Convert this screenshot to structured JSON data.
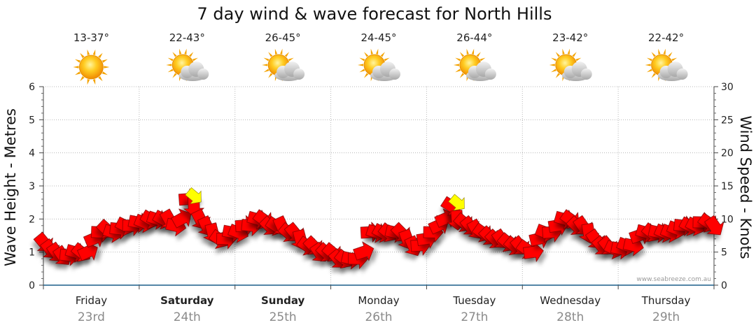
{
  "chart_data": {
    "type": "line",
    "title": "7 day wind & wave forecast for North Hills",
    "ylabel_left": "Wave Height - Metres",
    "ylabel_right": "Wind Speed - Knots",
    "ylim_left": [
      0,
      6
    ],
    "ylim_right": [
      0,
      30
    ],
    "left_ticks": [
      "0",
      "1",
      "2",
      "3",
      "4",
      "5",
      "6"
    ],
    "right_ticks": [
      "0",
      "5",
      "10",
      "15",
      "20",
      "25",
      "30"
    ],
    "credit": "www.seabreeze.com.au",
    "days": [
      {
        "name": "Friday",
        "date": "23rd",
        "temp": "13-37°",
        "weather": "sunny",
        "bold": false
      },
      {
        "name": "Saturday",
        "date": "24th",
        "temp": "22-43°",
        "weather": "partly-cloudy",
        "bold": true
      },
      {
        "name": "Sunday",
        "date": "25th",
        "temp": "26-45°",
        "weather": "partly-cloudy",
        "bold": true
      },
      {
        "name": "Monday",
        "date": "26th",
        "temp": "24-45°",
        "weather": "partly-cloudy",
        "bold": false
      },
      {
        "name": "Tuesday",
        "date": "27th",
        "temp": "26-44°",
        "weather": "partly-cloudy",
        "bold": false
      },
      {
        "name": "Wednesday",
        "date": "28th",
        "temp": "23-42°",
        "weather": "partly-cloudy",
        "bold": false
      },
      {
        "name": "Thursday",
        "date": "29th",
        "temp": "22-42°",
        "weather": "partly-cloudy",
        "bold": false
      }
    ],
    "series": [
      {
        "name": "Wind Speed (knots)",
        "axis": "right",
        "color": "#ff0000",
        "gust_color": "#ffff00",
        "values": [
          6.5,
          5.5,
          5,
          4.5,
          4.5,
          5,
          5,
          5,
          7,
          8,
          8.5,
          8,
          8.5,
          9,
          9,
          9.5,
          9.5,
          10,
          10,
          10,
          10,
          9,
          10,
          13,
          12,
          10,
          9,
          8,
          7,
          7,
          8,
          8,
          9,
          9,
          10,
          10,
          9,
          9,
          9,
          8,
          8,
          7,
          6,
          6,
          5,
          5,
          5,
          4,
          4,
          4,
          4,
          5,
          8,
          8,
          8,
          8,
          8,
          8,
          7,
          6,
          6,
          7,
          8,
          9,
          10,
          12,
          10,
          9.5,
          9,
          8.5,
          8,
          7.5,
          7,
          7,
          6.5,
          6,
          6,
          5.5,
          5,
          7,
          8,
          8,
          9,
          10,
          10,
          9,
          9,
          8,
          7,
          6,
          6,
          5.5,
          5.5,
          6,
          6,
          7.5,
          8,
          8,
          8,
          8,
          8,
          8.5,
          9,
          9,
          9,
          9.5,
          9.5,
          9
        ],
        "gusts": [
          [
            24,
            13.5
          ],
          [
            66,
            12.5
          ]
        ]
      }
    ]
  }
}
